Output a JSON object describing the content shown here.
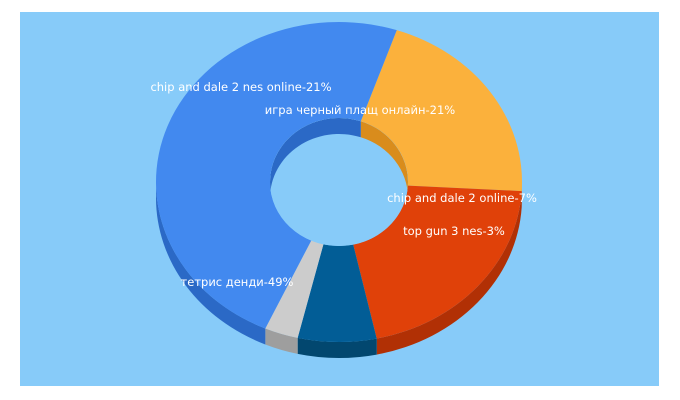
{
  "chart_data": {
    "type": "pie",
    "donut": true,
    "three_d": true,
    "title": "",
    "legend": "none",
    "slices": [
      {
        "label": "chip and dale 2 nes online-21%",
        "value": 21,
        "color": "#fbb13c",
        "side": "#d98c1c"
      },
      {
        "label": "игра черный плащ онлайн-21%",
        "value": 21,
        "color": "#e04109",
        "side": "#b13005"
      },
      {
        "label": "chip and dale 2 online-7%",
        "value": 7,
        "color": "#025d96",
        "side": "#02476f"
      },
      {
        "label": "top gun 3 nes-3%",
        "value": 3,
        "color": "#cccccc",
        "side": "#9e9e9e"
      },
      {
        "label": "тетрис денди-49%",
        "value": 49,
        "color": "#4289ef",
        "side": "#2b69c6"
      }
    ]
  },
  "colors": {
    "panel_background": "#87cbf9",
    "label_text": "#ffffff"
  }
}
